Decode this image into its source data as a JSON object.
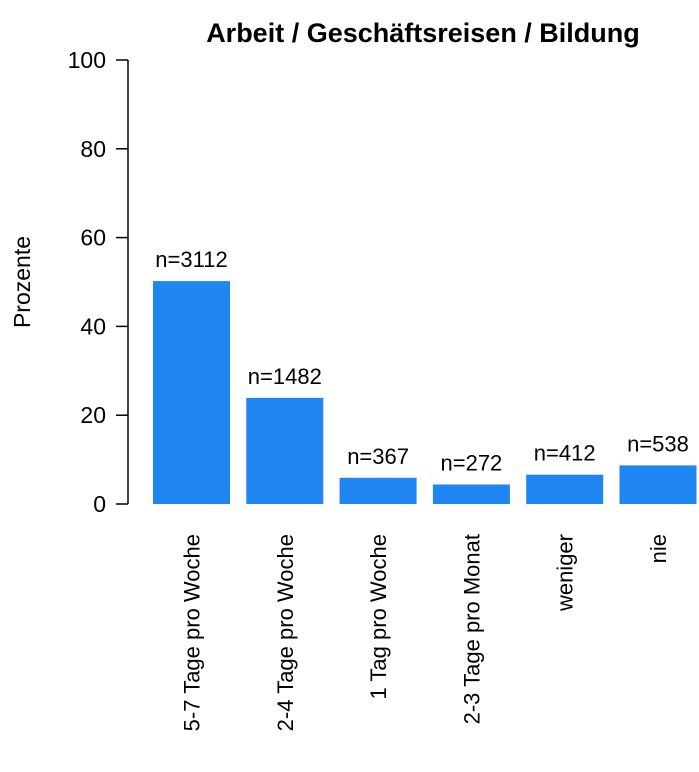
{
  "chart_data": {
    "type": "bar",
    "title": "Arbeit / Geschäftsreisen / Bildung",
    "ylabel": "Prozente",
    "xlabel": "",
    "ylim": [
      0,
      100
    ],
    "yticks": [
      0,
      20,
      40,
      60,
      80,
      100
    ],
    "grid": false,
    "legend": "none",
    "bar_color": "#1f85f0",
    "categories": [
      "5-7 Tage pro Woche",
      "2-4 Tage pro Woche",
      "1 Tag pro Woche",
      "2-3 Tage pro Monat",
      "weniger",
      "nie"
    ],
    "values": [
      50.2,
      23.9,
      5.9,
      4.4,
      6.6,
      8.7
    ],
    "data_labels": [
      "n=3112",
      "n=1482",
      "n=367",
      "n=272",
      "n=412",
      "n=538"
    ]
  }
}
